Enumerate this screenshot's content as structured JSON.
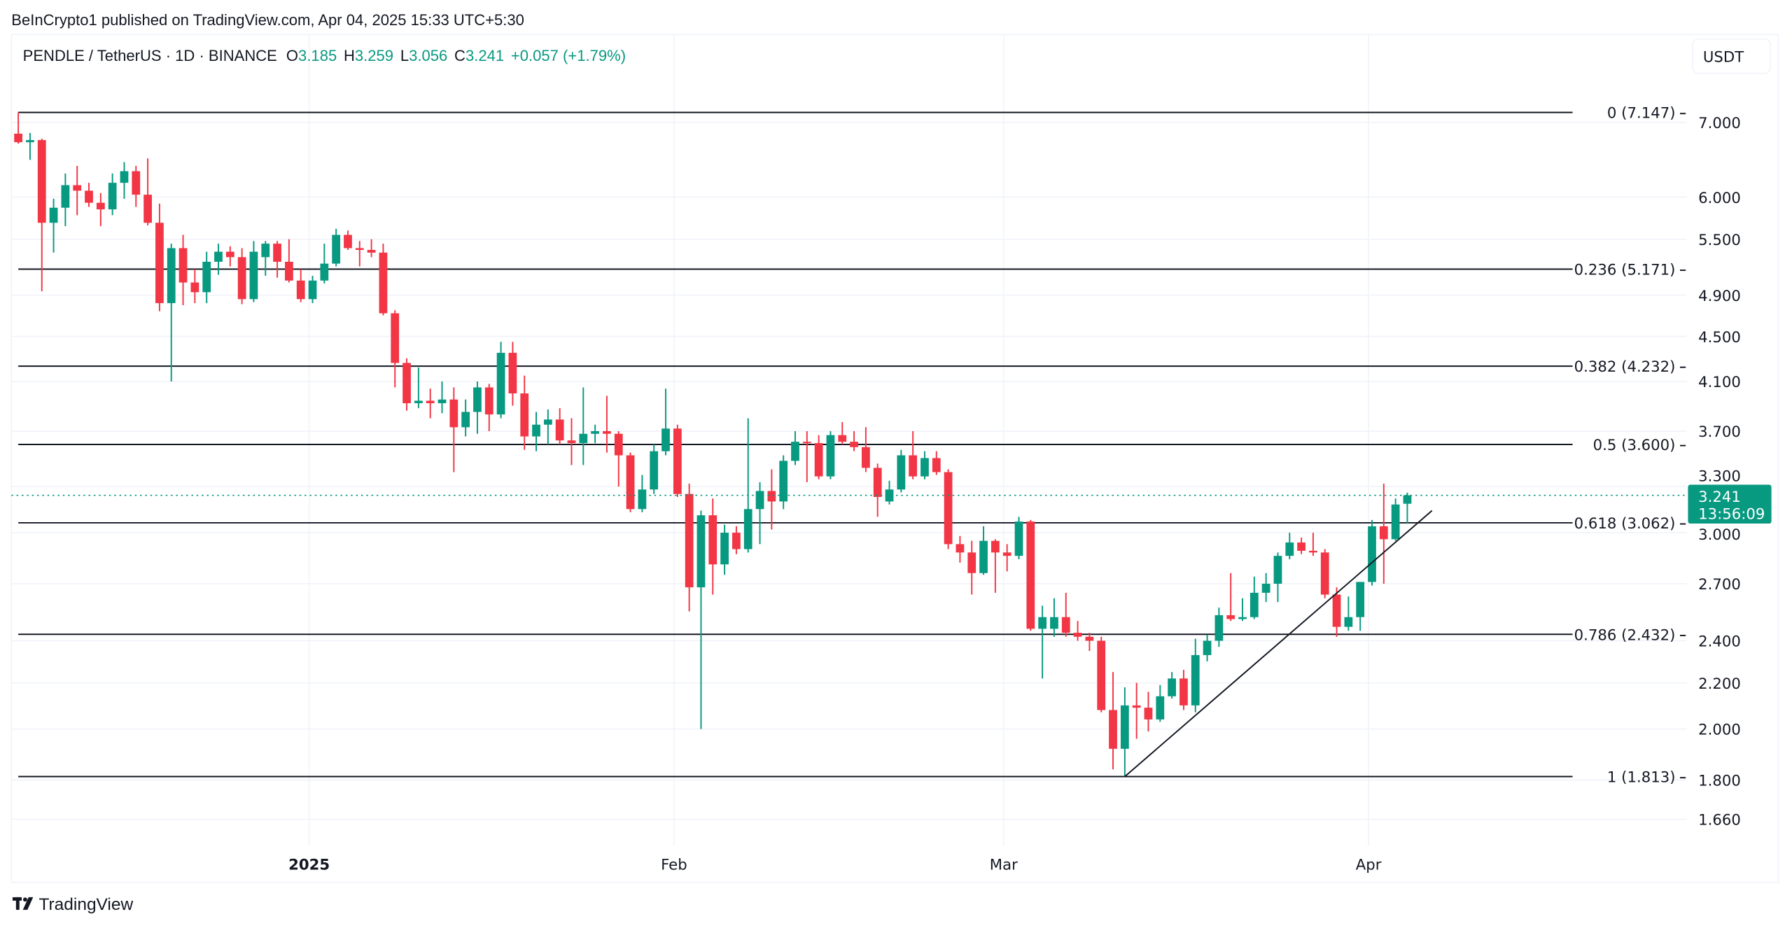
{
  "header": {
    "published": "BeInCrypto1 published on TradingView.com, Apr 04, 2025 15:33 UTC+5:30"
  },
  "legend": {
    "symbol": "PENDLE / TetherUS · 1D · BINANCE",
    "o_label": "O",
    "o_value": "3.185",
    "h_label": "H",
    "h_value": "3.259",
    "l_label": "L",
    "l_value": "3.056",
    "c_label": "C",
    "c_value": "3.241",
    "change": "+0.057 (+1.79%)"
  },
  "currency_button": "USDT",
  "last_price": {
    "price": "3.241",
    "countdown": "13:56:09"
  },
  "footer": {
    "logo_text": "TradingView"
  },
  "colors": {
    "up": "#089981",
    "down": "#f23645",
    "line": "#131722"
  },
  "chart_data": {
    "type": "candlestick",
    "title": "PENDLE / TetherUS · 1D · BINANCE",
    "scale": "log",
    "ylim": [
      1.6,
      7.5
    ],
    "start_date": "2024-12-07",
    "interval": "1D",
    "price_ticks": [
      "7.000",
      "6.000",
      "5.500",
      "4.900",
      "4.500",
      "4.100",
      "3.700",
      "3.300",
      "3.000",
      "2.700",
      "2.400",
      "2.200",
      "2.000",
      "1.800",
      "1.660"
    ],
    "time_ticks": [
      {
        "label": "2025",
        "day_index": 25,
        "bold": true
      },
      {
        "label": "Feb",
        "day_index": 56,
        "bold": false
      },
      {
        "label": "Mar",
        "day_index": 84,
        "bold": false
      },
      {
        "label": "Apr",
        "day_index": 115,
        "bold": false
      }
    ],
    "fib_levels": [
      {
        "ratio": 0,
        "price": 7.147,
        "label": "0 (7.147)"
      },
      {
        "ratio": 0.236,
        "price": 5.171,
        "label": "0.236 (5.171)"
      },
      {
        "ratio": 0.382,
        "price": 4.232,
        "label": "0.382 (4.232)"
      },
      {
        "ratio": 0.5,
        "price": 3.6,
        "label": "0.5 (3.600)"
      },
      {
        "ratio": 0.618,
        "price": 3.062,
        "label": "0.618 (3.062)"
      },
      {
        "ratio": 0.786,
        "price": 2.432,
        "label": "0.786 (2.432)"
      },
      {
        "ratio": 1,
        "price": 1.813,
        "label": "1 (1.813)"
      }
    ],
    "trendline": {
      "from": {
        "day_index": 94,
        "price": 1.813
      },
      "to": {
        "day_index": 120,
        "price": 3.14
      }
    },
    "ohlc": [
      [
        6.84,
        7.147,
        6.7,
        6.72
      ],
      [
        6.72,
        6.85,
        6.48,
        6.75
      ],
      [
        6.75,
        6.77,
        4.94,
        5.69
      ],
      [
        5.69,
        5.98,
        5.35,
        5.87
      ],
      [
        5.87,
        6.3,
        5.65,
        6.15
      ],
      [
        6.15,
        6.4,
        5.78,
        6.08
      ],
      [
        6.08,
        6.18,
        5.88,
        5.93
      ],
      [
        5.93,
        6.05,
        5.65,
        5.85
      ],
      [
        5.85,
        6.3,
        5.78,
        6.18
      ],
      [
        6.18,
        6.45,
        5.98,
        6.33
      ],
      [
        6.33,
        6.4,
        5.88,
        6.03
      ],
      [
        6.03,
        6.5,
        5.66,
        5.69
      ],
      [
        5.69,
        5.92,
        4.74,
        4.82
      ],
      [
        4.82,
        5.45,
        4.1,
        5.4
      ],
      [
        5.4,
        5.55,
        4.8,
        5.03
      ],
      [
        5.03,
        5.17,
        4.82,
        4.93
      ],
      [
        4.93,
        5.36,
        4.82,
        5.25
      ],
      [
        5.25,
        5.45,
        5.11,
        5.36
      ],
      [
        5.36,
        5.42,
        5.2,
        5.3
      ],
      [
        5.3,
        5.4,
        4.81,
        4.86
      ],
      [
        4.86,
        5.48,
        4.83,
        5.36
      ],
      [
        5.3,
        5.48,
        5.1,
        5.45
      ],
      [
        5.45,
        5.48,
        5.08,
        5.25
      ],
      [
        5.25,
        5.5,
        5.03,
        5.05
      ],
      [
        5.05,
        5.17,
        4.83,
        4.86
      ],
      [
        4.86,
        5.1,
        4.82,
        5.05
      ],
      [
        5.05,
        5.45,
        5.02,
        5.23
      ],
      [
        5.23,
        5.62,
        5.2,
        5.55
      ],
      [
        5.55,
        5.6,
        5.38,
        5.4
      ],
      [
        5.4,
        5.48,
        5.2,
        5.38
      ],
      [
        5.38,
        5.5,
        5.3,
        5.35
      ],
      [
        5.35,
        5.45,
        4.7,
        4.72
      ],
      [
        4.72,
        4.75,
        4.05,
        4.26
      ],
      [
        4.26,
        4.3,
        3.86,
        3.92
      ],
      [
        3.92,
        4.22,
        3.88,
        3.94
      ],
      [
        3.94,
        4.04,
        3.8,
        3.92
      ],
      [
        3.92,
        4.1,
        3.84,
        3.95
      ],
      [
        3.95,
        4.05,
        3.4,
        3.73
      ],
      [
        3.73,
        3.95,
        3.66,
        3.85
      ],
      [
        3.85,
        4.1,
        3.68,
        4.05
      ],
      [
        4.05,
        4.08,
        3.7,
        3.83
      ],
      [
        3.83,
        4.45,
        3.8,
        4.35
      ],
      [
        4.35,
        4.45,
        3.9,
        4.0
      ],
      [
        4.0,
        4.15,
        3.56,
        3.66
      ],
      [
        3.66,
        3.85,
        3.55,
        3.75
      ],
      [
        3.75,
        3.87,
        3.6,
        3.79
      ],
      [
        3.79,
        3.88,
        3.6,
        3.63
      ],
      [
        3.63,
        3.8,
        3.45,
        3.61
      ],
      [
        3.61,
        4.05,
        3.45,
        3.68
      ],
      [
        3.68,
        3.75,
        3.61,
        3.7
      ],
      [
        3.7,
        3.98,
        3.54,
        3.68
      ],
      [
        3.68,
        3.7,
        3.3,
        3.52
      ],
      [
        3.52,
        3.54,
        3.13,
        3.15
      ],
      [
        3.15,
        3.38,
        3.13,
        3.28
      ],
      [
        3.28,
        3.6,
        3.25,
        3.55
      ],
      [
        3.55,
        4.04,
        3.52,
        3.72
      ],
      [
        3.72,
        3.75,
        3.23,
        3.25
      ],
      [
        3.25,
        3.32,
        2.55,
        2.68
      ],
      [
        2.68,
        3.14,
        2.0,
        3.11
      ],
      [
        3.11,
        3.22,
        2.64,
        2.81
      ],
      [
        2.81,
        3.05,
        2.75,
        3.0
      ],
      [
        3.0,
        3.04,
        2.87,
        2.9
      ],
      [
        2.9,
        3.8,
        2.88,
        3.15
      ],
      [
        3.15,
        3.33,
        2.93,
        3.27
      ],
      [
        3.27,
        3.42,
        3.02,
        3.2
      ],
      [
        3.2,
        3.52,
        3.15,
        3.48
      ],
      [
        3.48,
        3.7,
        3.45,
        3.62
      ],
      [
        3.62,
        3.7,
        3.33,
        3.61
      ],
      [
        3.61,
        3.67,
        3.35,
        3.37
      ],
      [
        3.37,
        3.7,
        3.35,
        3.67
      ],
      [
        3.67,
        3.77,
        3.6,
        3.62
      ],
      [
        3.62,
        3.7,
        3.55,
        3.58
      ],
      [
        3.58,
        3.73,
        3.4,
        3.43
      ],
      [
        3.43,
        3.46,
        3.1,
        3.23
      ],
      [
        3.2,
        3.34,
        3.18,
        3.28
      ],
      [
        3.28,
        3.56,
        3.26,
        3.52
      ],
      [
        3.52,
        3.7,
        3.35,
        3.37
      ],
      [
        3.37,
        3.55,
        3.35,
        3.5
      ],
      [
        3.5,
        3.55,
        3.38,
        3.4
      ],
      [
        3.4,
        3.42,
        2.9,
        2.93
      ],
      [
        2.93,
        2.98,
        2.82,
        2.88
      ],
      [
        2.88,
        2.95,
        2.64,
        2.76
      ],
      [
        2.76,
        3.04,
        2.75,
        2.95
      ],
      [
        2.95,
        2.96,
        2.65,
        2.88
      ],
      [
        2.88,
        2.93,
        2.77,
        2.86
      ],
      [
        2.86,
        3.1,
        2.84,
        3.07
      ],
      [
        3.07,
        3.08,
        2.45,
        2.46
      ],
      [
        2.46,
        2.58,
        2.22,
        2.52
      ],
      [
        2.46,
        2.62,
        2.42,
        2.52
      ],
      [
        2.52,
        2.65,
        2.42,
        2.44
      ],
      [
        2.44,
        2.5,
        2.4,
        2.42
      ],
      [
        2.42,
        2.44,
        2.35,
        2.4
      ],
      [
        2.4,
        2.42,
        2.07,
        2.08
      ],
      [
        2.08,
        2.25,
        1.84,
        1.92
      ],
      [
        1.92,
        2.18,
        1.813,
        2.1
      ],
      [
        2.1,
        2.2,
        1.96,
        2.09
      ],
      [
        2.09,
        2.16,
        1.99,
        2.04
      ],
      [
        2.04,
        2.19,
        2.03,
        2.14
      ],
      [
        2.14,
        2.25,
        2.13,
        2.22
      ],
      [
        2.22,
        2.26,
        2.08,
        2.1
      ],
      [
        2.1,
        2.41,
        2.07,
        2.33
      ],
      [
        2.33,
        2.43,
        2.3,
        2.4
      ],
      [
        2.4,
        2.57,
        2.37,
        2.53
      ],
      [
        2.53,
        2.76,
        2.5,
        2.51
      ],
      [
        2.51,
        2.62,
        2.5,
        2.52
      ],
      [
        2.52,
        2.74,
        2.51,
        2.65
      ],
      [
        2.65,
        2.76,
        2.6,
        2.7
      ],
      [
        2.7,
        2.88,
        2.6,
        2.86
      ],
      [
        2.86,
        3.0,
        2.84,
        2.94
      ],
      [
        2.94,
        2.97,
        2.87,
        2.89
      ],
      [
        2.89,
        3.0,
        2.86,
        2.88
      ],
      [
        2.88,
        2.9,
        2.62,
        2.64
      ],
      [
        2.64,
        2.68,
        2.42,
        2.47
      ],
      [
        2.47,
        2.63,
        2.45,
        2.52
      ],
      [
        2.52,
        2.7,
        2.45,
        2.71
      ],
      [
        2.71,
        3.08,
        2.69,
        3.04
      ],
      [
        3.04,
        3.32,
        2.7,
        2.96
      ],
      [
        2.96,
        3.22,
        2.95,
        3.18
      ],
      [
        3.185,
        3.259,
        3.056,
        3.241
      ]
    ]
  }
}
